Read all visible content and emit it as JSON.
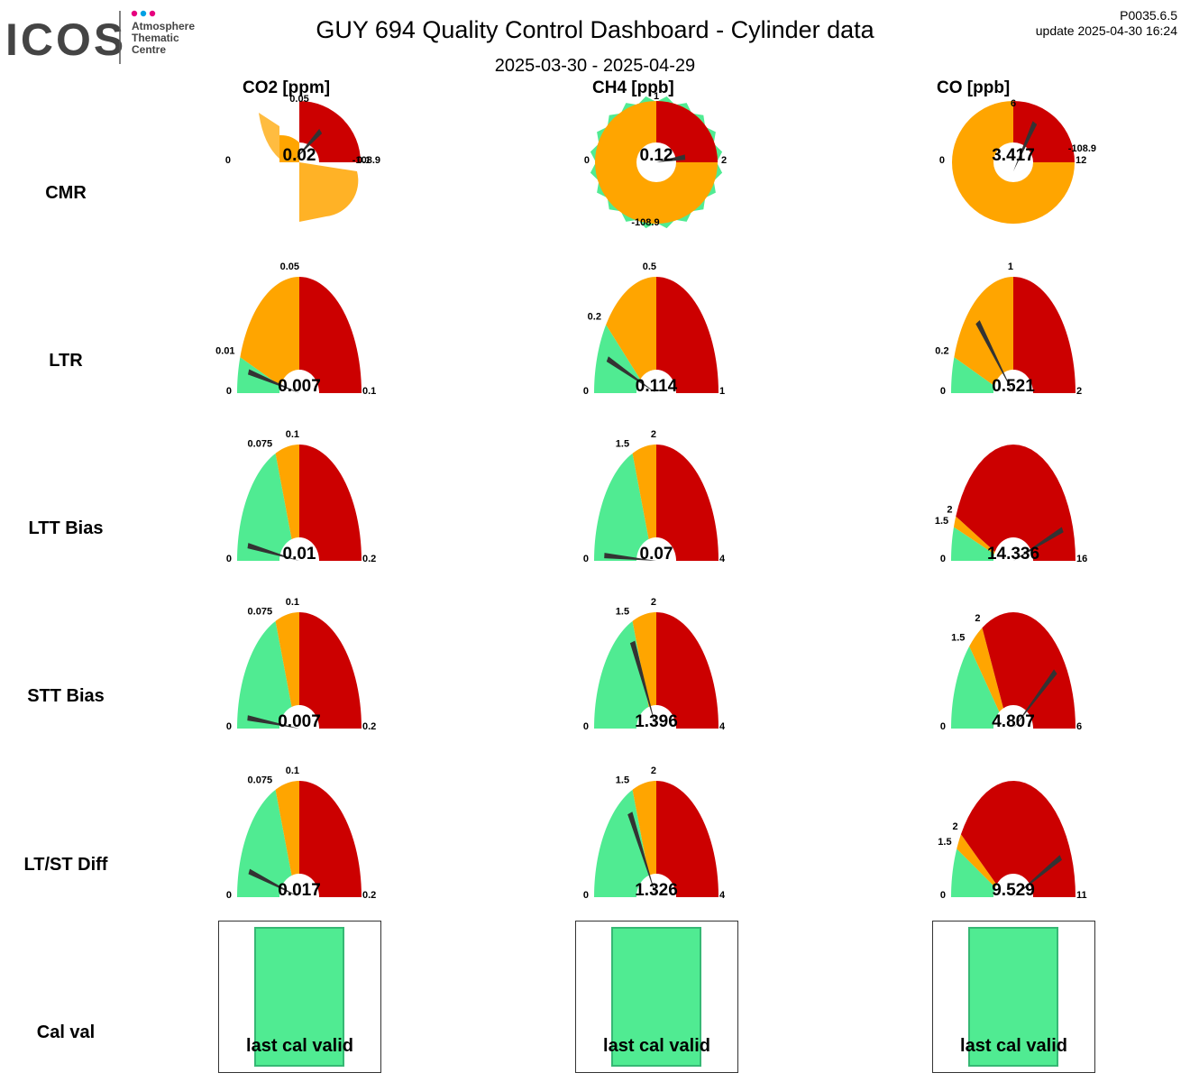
{
  "header": {
    "logo_text": "ICOS",
    "logo_sub": [
      "Atmosphere",
      "Thematic",
      "Centre"
    ],
    "title": "GUY 694 Quality Control Dashboard - Cylinder data",
    "subtitle": "2025-03-30 - 2025-04-29",
    "version": "P0035.6.5",
    "update": "update  2025-04-30 16:24"
  },
  "columns": [
    "CO2 [ppm]",
    "CH4 [ppb]",
    "CO [ppb]"
  ],
  "rows": [
    "CMR",
    "LTR",
    "LTT Bias",
    "STT Bias",
    "LT/ST Diff",
    "Cal val"
  ],
  "colors": {
    "green": "#50eb92",
    "orange": "#ffa500",
    "red": "#cc0000",
    "needle": "#333333",
    "logo_gray": "#444444",
    "logo_dots": [
      "#e6007e",
      "#00a0e3",
      "#e6007e"
    ]
  },
  "chart_data": [
    {
      "type": "gauge",
      "metric": "CMR",
      "gas": "CO2 [ppm]",
      "value": 0.02,
      "value_text": "0.02",
      "min": 0,
      "max": 0.1,
      "zones": [
        [
          0,
          0.05,
          "orange"
        ],
        [
          0.05,
          0.1,
          "red"
        ]
      ],
      "labels": [
        "0",
        "0.05",
        "-108.9",
        "0.1"
      ],
      "rendering": "broken-orange"
    },
    {
      "type": "gauge",
      "metric": "CMR",
      "gas": "CH4 [ppb]",
      "value": 0.12,
      "value_text": "0.12",
      "min": 0,
      "max": 2,
      "zones": [
        [
          0,
          1,
          "orange"
        ],
        [
          1,
          2,
          "red"
        ]
      ],
      "labels": [
        "0",
        "1",
        "2",
        "-108.9"
      ],
      "rendering": "broken-flower"
    },
    {
      "type": "gauge",
      "metric": "CMR",
      "gas": "CO [ppb]",
      "value": 3.417,
      "value_text": "3.417",
      "min": 0,
      "max": 12,
      "zones": [
        [
          0,
          6,
          "orange"
        ],
        [
          6,
          12,
          "red"
        ]
      ],
      "labels": [
        "0",
        "6",
        "-108.9",
        "12"
      ],
      "rendering": "broken-ring"
    },
    {
      "type": "gauge",
      "metric": "LTR",
      "gas": "CO2 [ppm]",
      "value": 0.007,
      "value_text": "0.007",
      "min": 0,
      "max": 0.1,
      "zones": [
        [
          0,
          0.01,
          "green"
        ],
        [
          0.01,
          0.05,
          "orange"
        ],
        [
          0.05,
          0.1,
          "red"
        ]
      ],
      "labels": [
        "0",
        "0.01",
        "0.05",
        "0.1"
      ]
    },
    {
      "type": "gauge",
      "metric": "LTR",
      "gas": "CH4 [ppb]",
      "value": 0.114,
      "value_text": "0.114",
      "min": 0,
      "max": 1,
      "zones": [
        [
          0,
          0.2,
          "green"
        ],
        [
          0.2,
          0.5,
          "orange"
        ],
        [
          0.5,
          1,
          "red"
        ]
      ],
      "labels": [
        "0",
        "0.2",
        "0.5",
        "1"
      ]
    },
    {
      "type": "gauge",
      "metric": "LTR",
      "gas": "CO [ppb]",
      "value": 0.521,
      "value_text": "0.521",
      "min": 0,
      "max": 2,
      "zones": [
        [
          0,
          0.2,
          "green"
        ],
        [
          0.2,
          1,
          "orange"
        ],
        [
          1,
          2,
          "red"
        ]
      ],
      "labels": [
        "0",
        "0.2",
        "1",
        "2"
      ]
    },
    {
      "type": "gauge",
      "metric": "LTT Bias",
      "gas": "CO2 [ppm]",
      "value": 0.01,
      "value_text": "0.01",
      "min": 0,
      "max": 0.2,
      "zones": [
        [
          0,
          0.075,
          "green"
        ],
        [
          0.075,
          0.1,
          "orange"
        ],
        [
          0.1,
          0.2,
          "red"
        ]
      ],
      "labels": [
        "0",
        "0.075",
        "0.1",
        "0.2"
      ]
    },
    {
      "type": "gauge",
      "metric": "LTT Bias",
      "gas": "CH4 [ppb]",
      "value": 0.07,
      "value_text": "0.07",
      "min": 0,
      "max": 4,
      "zones": [
        [
          0,
          1.5,
          "green"
        ],
        [
          1.5,
          2,
          "orange"
        ],
        [
          2,
          4,
          "red"
        ]
      ],
      "labels": [
        "0",
        "1.5",
        "2",
        "4"
      ]
    },
    {
      "type": "gauge",
      "metric": "LTT Bias",
      "gas": "CO [ppb]",
      "value": 14.336,
      "value_text": "14.336",
      "min": 0,
      "max": 16,
      "zones": [
        [
          0,
          1.5,
          "green"
        ],
        [
          1.5,
          2,
          "orange"
        ],
        [
          2,
          16,
          "red"
        ]
      ],
      "labels": [
        "0",
        "1.5",
        "2",
        "16"
      ]
    },
    {
      "type": "gauge",
      "metric": "STT Bias",
      "gas": "CO2 [ppm]",
      "value": 0.007,
      "value_text": "0.007",
      "min": 0,
      "max": 0.2,
      "zones": [
        [
          0,
          0.075,
          "green"
        ],
        [
          0.075,
          0.1,
          "orange"
        ],
        [
          0.1,
          0.2,
          "red"
        ]
      ],
      "labels": [
        "0",
        "0.075",
        "0.1",
        "0.2"
      ]
    },
    {
      "type": "gauge",
      "metric": "STT Bias",
      "gas": "CH4 [ppb]",
      "value": 1.396,
      "value_text": "1.396",
      "min": 0,
      "max": 4,
      "zones": [
        [
          0,
          1.5,
          "green"
        ],
        [
          1.5,
          2,
          "orange"
        ],
        [
          2,
          4,
          "red"
        ]
      ],
      "labels": [
        "0",
        "1.5",
        "2",
        "4"
      ]
    },
    {
      "type": "gauge",
      "metric": "STT Bias",
      "gas": "CO [ppb]",
      "value": 4.807,
      "value_text": "4.807",
      "min": 0,
      "max": 6,
      "zones": [
        [
          0,
          1.5,
          "green"
        ],
        [
          1.5,
          2,
          "orange"
        ],
        [
          2,
          6,
          "red"
        ]
      ],
      "labels": [
        "0",
        "1.5",
        "2",
        "6"
      ]
    },
    {
      "type": "gauge",
      "metric": "LT/ST Diff",
      "gas": "CO2 [ppm]",
      "value": 0.017,
      "value_text": "0.017",
      "min": 0,
      "max": 0.2,
      "zones": [
        [
          0,
          0.075,
          "green"
        ],
        [
          0.075,
          0.1,
          "orange"
        ],
        [
          0.1,
          0.2,
          "red"
        ]
      ],
      "labels": [
        "0",
        "0.075",
        "0.1",
        "0.2"
      ]
    },
    {
      "type": "gauge",
      "metric": "LT/ST Diff",
      "gas": "CH4 [ppb]",
      "value": 1.326,
      "value_text": "1.326",
      "min": 0,
      "max": 4,
      "zones": [
        [
          0,
          1.5,
          "green"
        ],
        [
          1.5,
          2,
          "orange"
        ],
        [
          2,
          4,
          "red"
        ]
      ],
      "labels": [
        "0",
        "1.5",
        "2",
        "4"
      ]
    },
    {
      "type": "gauge",
      "metric": "LT/ST Diff",
      "gas": "CO [ppb]",
      "value": 9.529,
      "value_text": "9.529",
      "min": 0,
      "max": 11,
      "zones": [
        [
          0,
          1.5,
          "green"
        ],
        [
          1.5,
          2,
          "orange"
        ],
        [
          2,
          11,
          "red"
        ]
      ],
      "labels": [
        "0",
        "1.5",
        "2",
        "11"
      ]
    }
  ],
  "cal_val": [
    {
      "gas": "CO2 [ppm]",
      "status": "last cal valid",
      "color": "green"
    },
    {
      "gas": "CH4 [ppb]",
      "status": "last cal valid",
      "color": "green"
    },
    {
      "gas": "CO [ppb]",
      "status": "last cal valid",
      "color": "green"
    }
  ]
}
